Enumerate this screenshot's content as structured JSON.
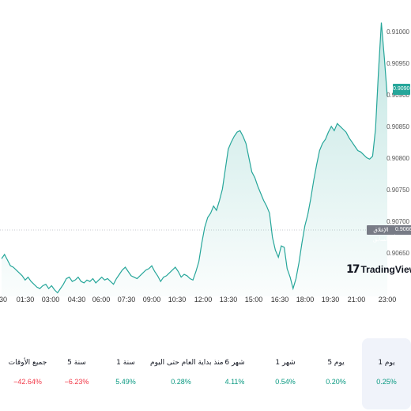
{
  "chart_data": {
    "type": "area",
    "y_ticks": [
      "0.91000",
      "0.90950",
      "0.90900",
      "0.90850",
      "0.90800",
      "0.90750",
      "0.90700",
      "0.90650"
    ],
    "x_ticks": [
      "30",
      "01:30",
      "03:00",
      "04:30",
      "06:00",
      "07:30",
      "09:00",
      "10:30",
      "12:00",
      "13:30",
      "15:00",
      "16:30",
      "18:00",
      "19:30",
      "21:00",
      "23:00"
    ],
    "ylim": [
      0.90625,
      0.91025
    ],
    "previous_close": {
      "label": "الإغلاق السابق",
      "value": "0.90666"
    },
    "current": {
      "value": "0.90906"
    },
    "series_color": "#26a69a",
    "grid": false,
    "values": [
      0.90678,
      0.90684,
      0.90676,
      0.90668,
      0.90666,
      0.90662,
      0.90658,
      0.90654,
      0.90648,
      0.90652,
      0.90646,
      0.90642,
      0.90638,
      0.90636,
      0.9064,
      0.90642,
      0.90636,
      0.9064,
      0.90634,
      0.9063,
      0.90636,
      0.90642,
      0.9065,
      0.90652,
      0.90646,
      0.90648,
      0.90652,
      0.90646,
      0.90644,
      0.90648,
      0.90646,
      0.9065,
      0.90644,
      0.90648,
      0.90652,
      0.90648,
      0.9065,
      0.90646,
      0.90642,
      0.9065,
      0.90656,
      0.90662,
      0.90666,
      0.9066,
      0.90654,
      0.90652,
      0.9065,
      0.90654,
      0.90658,
      0.90662,
      0.90664,
      0.90668,
      0.9066,
      0.90654,
      0.90646,
      0.90652,
      0.90654,
      0.90658,
      0.90662,
      0.90666,
      0.9066,
      0.90652,
      0.90656,
      0.90654,
      0.9065,
      0.90648,
      0.9066,
      0.90674,
      0.907,
      0.90722,
      0.90736,
      0.90742,
      0.90752,
      0.90746,
      0.9076,
      0.90776,
      0.90804,
      0.90832,
      0.90842,
      0.9085,
      0.90856,
      0.90858,
      0.9085,
      0.9084,
      0.9082,
      0.908,
      0.90792,
      0.9078,
      0.9077,
      0.9076,
      0.90752,
      0.90742,
      0.90708,
      0.9069,
      0.9068,
      0.90696,
      0.90694,
      0.90664,
      0.90652,
      0.90636,
      0.9065,
      0.90672,
      0.907,
      0.90724,
      0.9074,
      0.90762,
      0.90788,
      0.9081,
      0.9083,
      0.9084,
      0.90846,
      0.90856,
      0.90864,
      0.90858,
      0.90868,
      0.90864,
      0.9086,
      0.90856,
      0.90848,
      0.90842,
      0.90836,
      0.9083,
      0.90828,
      0.90824,
      0.9082,
      0.90818,
      0.90822,
      0.9086,
      0.9094,
      0.9101,
      0.9096,
      0.90906
    ]
  },
  "brand": {
    "name": "TradingView",
    "logo_glyph": "17"
  },
  "periods": [
    {
      "label": "جميع الأوقات",
      "value": "−42.64%",
      "sign": "neg"
    },
    {
      "label": "5 سنة",
      "value": "−6.23%",
      "sign": "neg"
    },
    {
      "label": "1 سنة",
      "value": "5.49%",
      "sign": "pos"
    },
    {
      "label": "منذ بداية العام حتى اليوم",
      "value": "0.28%",
      "sign": "pos"
    },
    {
      "label": "6 شهر",
      "value": "4.11%",
      "sign": "pos"
    },
    {
      "label": "1 شهر",
      "value": "0.54%",
      "sign": "pos"
    },
    {
      "label": "5 يوم",
      "value": "0.20%",
      "sign": "pos"
    },
    {
      "label": "1 يوم",
      "value": "0.25%",
      "sign": "pos",
      "active": true
    }
  ]
}
